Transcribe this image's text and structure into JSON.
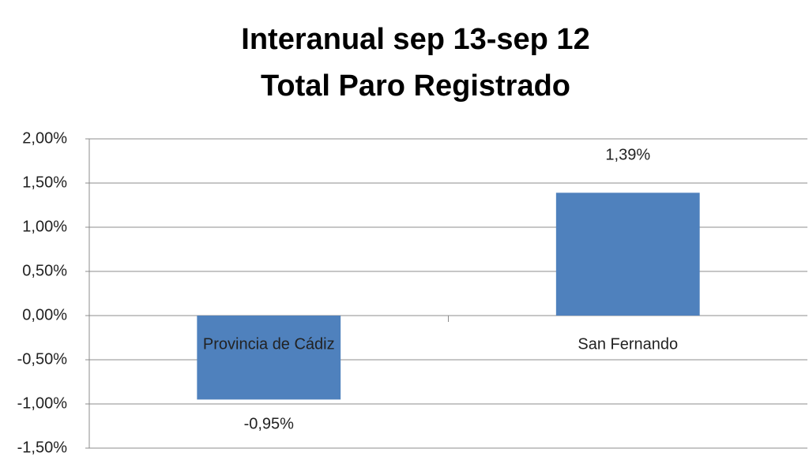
{
  "chart_data": {
    "type": "bar",
    "title": [
      "Interanual sep 13-sep 12",
      "Total Paro Registrado"
    ],
    "categories": [
      "Provincia de Cádiz",
      "San Fernando"
    ],
    "values": [
      -0.95,
      1.39
    ],
    "value_labels": [
      "-0,95%",
      "1,39%"
    ],
    "color": "#4f81bd",
    "ylim": [
      -1.5,
      2
    ],
    "yticks": [
      {
        "value": 2,
        "label": "2,00%"
      },
      {
        "value": 1.5,
        "label": "1,50%"
      },
      {
        "value": 1,
        "label": "1,00%"
      },
      {
        "value": 0.5,
        "label": "0,50%"
      },
      {
        "value": 0,
        "label": "0,00%"
      },
      {
        "value": -0.5,
        "label": "-0,50%"
      },
      {
        "value": -1,
        "label": "-1,00%"
      },
      {
        "value": -1.5,
        "label": "-1,50%"
      }
    ],
    "grid": true
  }
}
